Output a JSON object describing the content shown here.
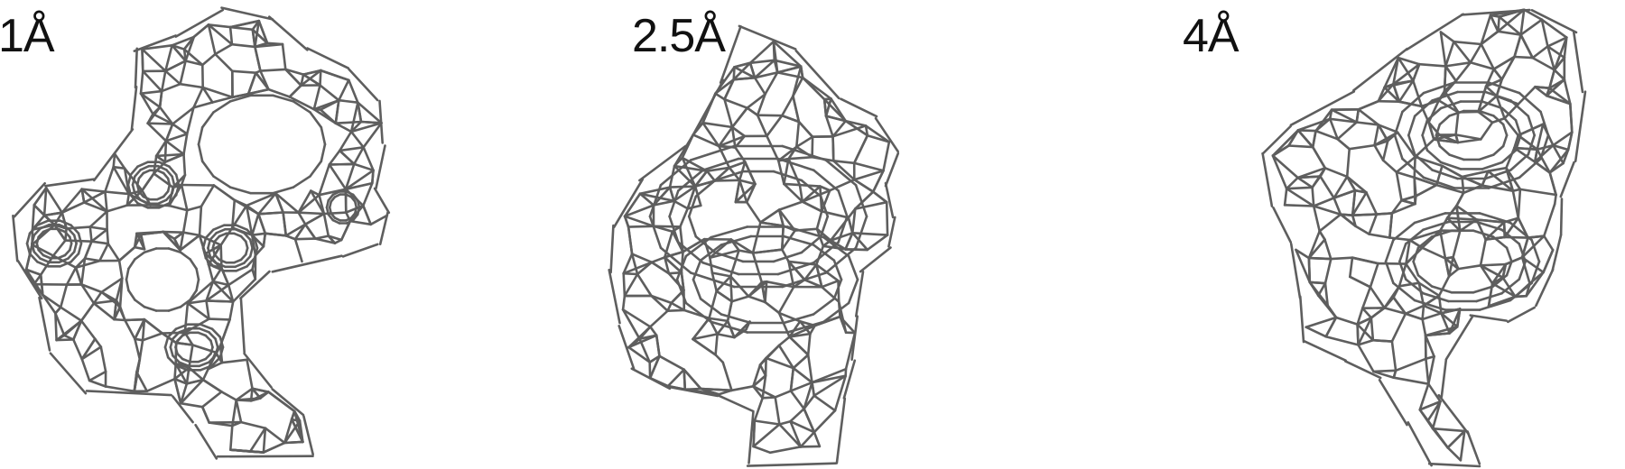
{
  "panels": [
    {
      "label": "1Å"
    },
    {
      "label": "2.5Å"
    },
    {
      "label": "4Å"
    }
  ],
  "mesh_color": "#5e5e5e"
}
